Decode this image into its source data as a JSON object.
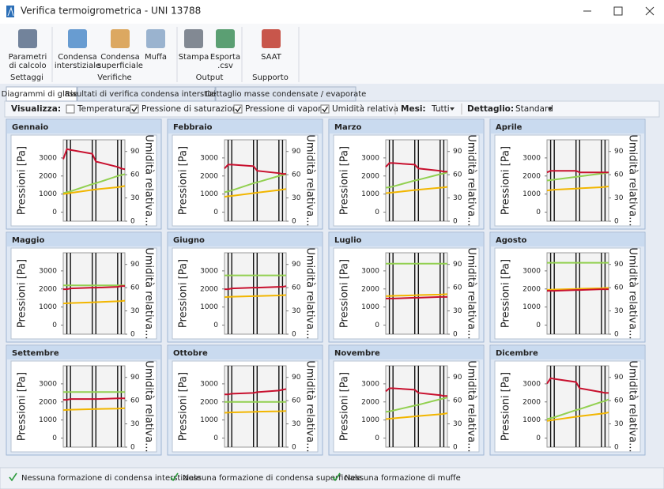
{
  "ui": {
    "window_title": "Verifica termoigrometrica - UNI 13788",
    "ribbon": {
      "groups": [
        {
          "label": "Settaggi",
          "buttons": [
            [
              "Parametri",
              "di calcolo"
            ]
          ]
        },
        {
          "label": "Verifiche",
          "buttons": [
            [
              "Condensa",
              "interstiziale"
            ],
            [
              "Condensa",
              "superficiale"
            ],
            [
              "Muffa"
            ]
          ]
        },
        {
          "label": "Output",
          "buttons": [
            [
              "Stampa"
            ],
            [
              "Esporta",
              ".csv"
            ]
          ]
        },
        {
          "label": "Supporto",
          "buttons": [
            [
              "SAAT"
            ]
          ]
        }
      ]
    },
    "tabs": [
      "Diagrammi di glaser",
      "Risultati di verifica condensa interstiziale",
      "Dettaglio masse condensate / evaporate"
    ],
    "toolbar": {
      "show_label": "Visualizza:",
      "options": [
        {
          "label": "Temperatura",
          "checked": false,
          "color": "#1f3c99"
        },
        {
          "label": "Pressione di saturazione",
          "checked": true,
          "color": "#2e8b2e"
        },
        {
          "label": "Pressione di vapore",
          "checked": true,
          "color": "#cc8400"
        },
        {
          "label": "Umidità relativa",
          "checked": true,
          "color": "#cc0000"
        }
      ],
      "months_label": "Mesi:",
      "months_value": "Tutti",
      "detail_label": "Dettaglio:",
      "detail_value": "Standard"
    },
    "status": [
      "Nessuna formazione di condensa interstiziale",
      "Nessuna formazione di condensa superficiale",
      "Nessuna formazione di muffe"
    ]
  },
  "chart_data": [
    {
      "type": "line",
      "title": "Gennaio",
      "ylabel": "Pressioni [Pa]",
      "y2label": "Umidità relativa...",
      "x": [
        0,
        1,
        2,
        8,
        9,
        15,
        16,
        17
      ],
      "xlim": [
        0,
        17
      ],
      "ylim": [
        -500,
        4000
      ],
      "yticks": [
        0,
        1000,
        2000,
        3000
      ],
      "y2lim": [
        0,
        105
      ],
      "y2ticks": [
        0,
        30,
        60,
        90
      ],
      "series": [
        {
          "color": "#92d050",
          "values": [
            1050,
            1100,
            1150,
            1550,
            1600,
            2000,
            2050,
            2100
          ]
        },
        {
          "color": "#f2b600",
          "values": [
            1000,
            1030,
            1060,
            1230,
            1260,
            1380,
            1410,
            1450
          ]
        },
        {
          "color": "#c8102e",
          "axis": "y2",
          "values": [
            80,
            93,
            92,
            87,
            77,
            70,
            68,
            67
          ]
        }
      ]
    },
    {
      "type": "line",
      "title": "Febbraio",
      "ylabel": "Pressioni [Pa]",
      "y2label": "Umidità relativa...",
      "x": [
        0,
        1,
        2,
        8,
        9,
        15,
        16,
        17
      ],
      "xlim": [
        0,
        17
      ],
      "ylim": [
        -500,
        4000
      ],
      "yticks": [
        0,
        1000,
        2000,
        3000
      ],
      "y2lim": [
        0,
        105
      ],
      "y2ticks": [
        0,
        30,
        60,
        90
      ],
      "series": [
        {
          "color": "#92d050",
          "values": [
            1100,
            1150,
            1200,
            1600,
            1650,
            2000,
            2050,
            2100
          ]
        },
        {
          "color": "#f2b600",
          "values": [
            850,
            880,
            900,
            1050,
            1080,
            1220,
            1250,
            1280
          ]
        },
        {
          "color": "#c8102e",
          "axis": "y2",
          "values": [
            68,
            73,
            73,
            71,
            65,
            62,
            61,
            61
          ]
        }
      ]
    },
    {
      "type": "line",
      "title": "Marzo",
      "ylabel": "Pressioni [Pa]",
      "y2label": "Umidità relativa...",
      "x": [
        0,
        1,
        2,
        8,
        9,
        15,
        16,
        17
      ],
      "xlim": [
        0,
        17
      ],
      "ylim": [
        -500,
        4000
      ],
      "yticks": [
        0,
        1000,
        2000,
        3000
      ],
      "y2lim": [
        0,
        105
      ],
      "y2ticks": [
        0,
        30,
        60,
        90
      ],
      "series": [
        {
          "color": "#92d050",
          "values": [
            1350,
            1380,
            1420,
            1750,
            1790,
            2100,
            2140,
            2200
          ]
        },
        {
          "color": "#f2b600",
          "values": [
            1050,
            1070,
            1090,
            1220,
            1240,
            1350,
            1370,
            1400
          ]
        },
        {
          "color": "#c8102e",
          "axis": "y2",
          "values": [
            70,
            75,
            75,
            73,
            68,
            65,
            64,
            64
          ]
        }
      ]
    },
    {
      "type": "line",
      "title": "Aprile",
      "ylabel": "Pressioni [Pa]",
      "y2label": "Umidità relativa...",
      "x": [
        0,
        1,
        2,
        8,
        9,
        15,
        16,
        17
      ],
      "xlim": [
        0,
        17
      ],
      "ylim": [
        -500,
        4000
      ],
      "yticks": [
        0,
        1000,
        2000,
        3000
      ],
      "y2lim": [
        0,
        105
      ],
      "y2ticks": [
        0,
        30,
        60,
        90
      ],
      "series": [
        {
          "color": "#92d050",
          "values": [
            1750,
            1770,
            1800,
            1950,
            1980,
            2130,
            2160,
            2200
          ]
        },
        {
          "color": "#f2b600",
          "values": [
            1200,
            1220,
            1240,
            1300,
            1320,
            1380,
            1400,
            1420
          ]
        },
        {
          "color": "#c8102e",
          "axis": "y2",
          "values": [
            63,
            65,
            65,
            65,
            63,
            63,
            63,
            63
          ]
        }
      ]
    },
    {
      "type": "line",
      "title": "Maggio",
      "ylabel": "Pressioni [Pa]",
      "y2label": "Umidità relativa...",
      "x": [
        0,
        1,
        2,
        8,
        9,
        15,
        16,
        17
      ],
      "xlim": [
        0,
        17
      ],
      "ylim": [
        -500,
        4000
      ],
      "yticks": [
        0,
        1000,
        2000,
        3000
      ],
      "y2lim": [
        0,
        105
      ],
      "y2ticks": [
        0,
        30,
        60,
        90
      ],
      "series": [
        {
          "color": "#92d050",
          "values": [
            2200,
            2200,
            2200,
            2200,
            2200,
            2200,
            2200,
            2200
          ]
        },
        {
          "color": "#f2b600",
          "values": [
            1200,
            1210,
            1220,
            1260,
            1270,
            1320,
            1330,
            1350
          ]
        },
        {
          "color": "#c8102e",
          "axis": "y2",
          "values": [
            58,
            58,
            59,
            60,
            60,
            61,
            62,
            62
          ]
        }
      ]
    },
    {
      "type": "line",
      "title": "Giugno",
      "ylabel": "Pressioni [Pa]",
      "y2label": "Umidità relativa...",
      "x": [
        0,
        1,
        2,
        8,
        9,
        15,
        16,
        17
      ],
      "xlim": [
        0,
        17
      ],
      "ylim": [
        -500,
        4000
      ],
      "yticks": [
        0,
        1000,
        2000,
        3000
      ],
      "y2lim": [
        0,
        105
      ],
      "y2ticks": [
        0,
        30,
        60,
        90
      ],
      "series": [
        {
          "color": "#92d050",
          "values": [
            2750,
            2750,
            2750,
            2750,
            2750,
            2750,
            2750,
            2750
          ]
        },
        {
          "color": "#f2b600",
          "values": [
            1550,
            1560,
            1570,
            1600,
            1610,
            1640,
            1650,
            1660
          ]
        },
        {
          "color": "#c8102e",
          "axis": "y2",
          "values": [
            58,
            58,
            59,
            60,
            60,
            61,
            61,
            62
          ]
        }
      ]
    },
    {
      "type": "line",
      "title": "Luglio",
      "ylabel": "Pressioni [Pa]",
      "y2label": "Umidità relativa...",
      "x": [
        0,
        1,
        2,
        8,
        9,
        15,
        16,
        17
      ],
      "xlim": [
        0,
        17
      ],
      "ylim": [
        -500,
        4000
      ],
      "yticks": [
        0,
        1000,
        2000,
        3000
      ],
      "y2lim": [
        0,
        105
      ],
      "y2ticks": [
        0,
        30,
        60,
        90
      ],
      "series": [
        {
          "color": "#92d050",
          "values": [
            3400,
            3400,
            3400,
            3400,
            3400,
            3400,
            3400,
            3400
          ]
        },
        {
          "color": "#f2b600",
          "values": [
            1600,
            1610,
            1620,
            1650,
            1660,
            1690,
            1700,
            1710
          ]
        },
        {
          "color": "#c8102e",
          "axis": "y2",
          "values": [
            46,
            46,
            46,
            47,
            47,
            48,
            48,
            48
          ]
        }
      ]
    },
    {
      "type": "line",
      "title": "Agosto",
      "ylabel": "Pressioni [Pa]",
      "y2label": "Umidità relativa...",
      "x": [
        0,
        1,
        2,
        8,
        9,
        15,
        16,
        17
      ],
      "xlim": [
        0,
        17
      ],
      "ylim": [
        -500,
        4000
      ],
      "yticks": [
        0,
        1000,
        2000,
        3000
      ],
      "y2lim": [
        0,
        105
      ],
      "y2ticks": [
        0,
        30,
        60,
        90
      ],
      "series": [
        {
          "color": "#92d050",
          "values": [
            3450,
            3450,
            3450,
            3450,
            3450,
            3450,
            3450,
            3450
          ]
        },
        {
          "color": "#f2b600",
          "values": [
            1950,
            1960,
            1970,
            2000,
            2010,
            2040,
            2050,
            2060
          ]
        },
        {
          "color": "#c8102e",
          "axis": "y2",
          "values": [
            56,
            56,
            56,
            57,
            57,
            58,
            58,
            58
          ]
        }
      ]
    },
    {
      "type": "line",
      "title": "Settembre",
      "ylabel": "Pressioni [Pa]",
      "y2label": "Umidità relativa...",
      "x": [
        0,
        1,
        2,
        8,
        9,
        15,
        16,
        17
      ],
      "xlim": [
        0,
        17
      ],
      "ylim": [
        -500,
        4000
      ],
      "yticks": [
        0,
        1000,
        2000,
        3000
      ],
      "y2lim": [
        0,
        105
      ],
      "y2ticks": [
        0,
        30,
        60,
        90
      ],
      "series": [
        {
          "color": "#92d050",
          "values": [
            2550,
            2550,
            2550,
            2550,
            2550,
            2550,
            2550,
            2550
          ]
        },
        {
          "color": "#f2b600",
          "values": [
            1550,
            1560,
            1570,
            1600,
            1610,
            1630,
            1640,
            1650
          ]
        },
        {
          "color": "#c8102e",
          "axis": "y2",
          "values": [
            61,
            61,
            62,
            62,
            62,
            63,
            63,
            63
          ]
        }
      ]
    },
    {
      "type": "line",
      "title": "Ottobre",
      "ylabel": "Pressioni [Pa]",
      "y2label": "Umidità relativa...",
      "x": [
        0,
        1,
        2,
        8,
        9,
        15,
        16,
        17
      ],
      "xlim": [
        0,
        17
      ],
      "ylim": [
        -500,
        4000
      ],
      "yticks": [
        0,
        1000,
        2000,
        3000
      ],
      "y2lim": [
        0,
        105
      ],
      "y2ticks": [
        0,
        30,
        60,
        90
      ],
      "series": [
        {
          "color": "#92d050",
          "values": [
            2000,
            2000,
            2000,
            2000,
            2000,
            2000,
            2000,
            2000
          ]
        },
        {
          "color": "#f2b600",
          "values": [
            1400,
            1410,
            1420,
            1450,
            1460,
            1480,
            1490,
            1500
          ]
        },
        {
          "color": "#c8102e",
          "axis": "y2",
          "values": [
            68,
            68,
            69,
            70,
            71,
            73,
            74,
            75
          ]
        }
      ]
    },
    {
      "type": "line",
      "title": "Novembre",
      "ylabel": "Pressioni [Pa]",
      "y2label": "Umidità relativa...",
      "x": [
        0,
        1,
        2,
        8,
        9,
        15,
        16,
        17
      ],
      "xlim": [
        0,
        17
      ],
      "ylim": [
        -500,
        4000
      ],
      "yticks": [
        0,
        1000,
        2000,
        3000
      ],
      "y2lim": [
        0,
        105
      ],
      "y2ticks": [
        0,
        30,
        60,
        90
      ],
      "series": [
        {
          "color": "#92d050",
          "values": [
            1450,
            1480,
            1520,
            1800,
            1840,
            2150,
            2190,
            2250
          ]
        },
        {
          "color": "#f2b600",
          "values": [
            1050,
            1070,
            1090,
            1200,
            1220,
            1320,
            1340,
            1380
          ]
        },
        {
          "color": "#c8102e",
          "axis": "y2",
          "values": [
            72,
            76,
            76,
            74,
            70,
            67,
            66,
            66
          ]
        }
      ]
    },
    {
      "type": "line",
      "title": "Dicembre",
      "ylabel": "Pressioni [Pa]",
      "y2label": "Umidità relativa...",
      "x": [
        0,
        1,
        2,
        8,
        9,
        15,
        16,
        17
      ],
      "xlim": [
        0,
        17
      ],
      "ylim": [
        -500,
        4000
      ],
      "yticks": [
        0,
        1000,
        2000,
        3000
      ],
      "y2lim": [
        0,
        105
      ],
      "y2ticks": [
        0,
        30,
        60,
        90
      ],
      "series": [
        {
          "color": "#92d050",
          "values": [
            1050,
            1100,
            1150,
            1550,
            1600,
            2000,
            2050,
            2150
          ]
        },
        {
          "color": "#f2b600",
          "values": [
            950,
            980,
            1010,
            1180,
            1210,
            1350,
            1380,
            1420
          ]
        },
        {
          "color": "#c8102e",
          "axis": "y2",
          "values": [
            82,
            89,
            88,
            84,
            76,
            71,
            70,
            70
          ]
        }
      ]
    }
  ]
}
